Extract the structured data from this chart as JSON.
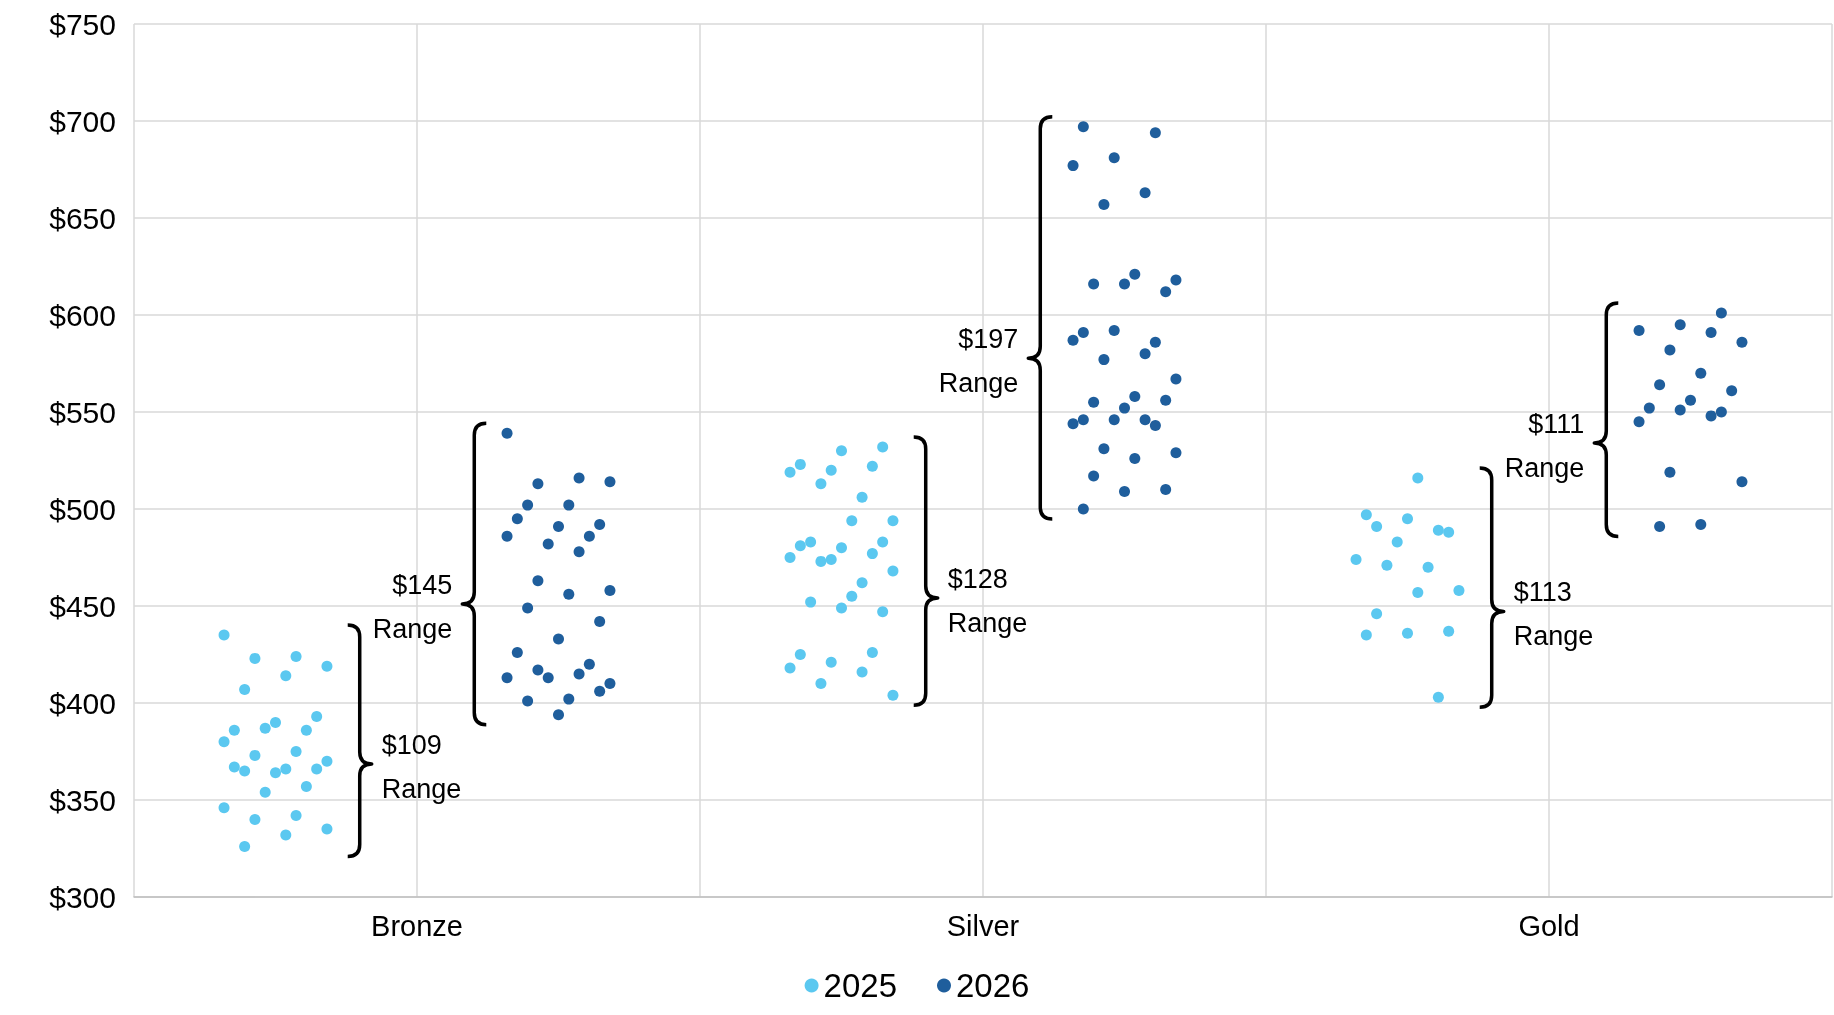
{
  "chart_data": {
    "type": "scatter",
    "categories": [
      "Bronze",
      "Silver",
      "Gold"
    ],
    "ylim": [
      300,
      750
    ],
    "yticks": [
      {
        "value": 300,
        "label": "$300"
      },
      {
        "value": 350,
        "label": "$350"
      },
      {
        "value": 400,
        "label": "$400"
      },
      {
        "value": 450,
        "label": "$450"
      },
      {
        "value": 500,
        "label": "$500"
      },
      {
        "value": 550,
        "label": "$550"
      },
      {
        "value": 600,
        "label": "$600"
      },
      {
        "value": 650,
        "label": "$650"
      },
      {
        "value": 700,
        "label": "$700"
      },
      {
        "value": 750,
        "label": "$750"
      }
    ],
    "grid": true,
    "legend": "bottom",
    "marker": "circle",
    "series": [
      {
        "name": "2025",
        "color": "#5bc8f0",
        "x": [
          "Bronze",
          "Bronze",
          "Bronze",
          "Bronze",
          "Bronze",
          "Bronze",
          "Bronze",
          "Bronze",
          "Bronze",
          "Bronze",
          "Bronze",
          "Bronze",
          "Bronze",
          "Bronze",
          "Bronze",
          "Bronze",
          "Bronze",
          "Bronze",
          "Bronze",
          "Bronze",
          "Bronze",
          "Bronze",
          "Bronze",
          "Bronze",
          "Bronze",
          "Bronze",
          "Bronze",
          "Bronze",
          "Silver",
          "Silver",
          "Silver",
          "Silver",
          "Silver",
          "Silver",
          "Silver",
          "Silver",
          "Silver",
          "Silver",
          "Silver",
          "Silver",
          "Silver",
          "Silver",
          "Silver",
          "Silver",
          "Silver",
          "Silver",
          "Silver",
          "Silver",
          "Silver",
          "Silver",
          "Silver",
          "Silver",
          "Silver",
          "Silver",
          "Silver",
          "Silver",
          "Silver",
          "Silver",
          "Silver",
          "Gold",
          "Gold",
          "Gold",
          "Gold",
          "Gold",
          "Gold",
          "Gold",
          "Gold",
          "Gold",
          "Gold",
          "Gold",
          "Gold",
          "Gold",
          "Gold",
          "Gold",
          "Gold",
          "Gold"
        ],
        "values": [
          435,
          424,
          423,
          419,
          414,
          407,
          393,
          390,
          386,
          386,
          387,
          380,
          375,
          373,
          370,
          366,
          365,
          366,
          364,
          367,
          357,
          354,
          346,
          342,
          340,
          335,
          332,
          326,
          532,
          530,
          523,
          522,
          520,
          519,
          506,
          513,
          494,
          494,
          483,
          483,
          480,
          481,
          477,
          474,
          475,
          462,
          473,
          468,
          455,
          452,
          447,
          449,
          425,
          426,
          421,
          418,
          416,
          410,
          404,
          516,
          491,
          488,
          495,
          497,
          489,
          483,
          474,
          470,
          471,
          458,
          457,
          446,
          437,
          436,
          435,
          403
        ]
      },
      {
        "name": "2026",
        "color": "#1f5e9c",
        "x": [
          "Bronze",
          "Bronze",
          "Bronze",
          "Bronze",
          "Bronze",
          "Bronze",
          "Bronze",
          "Bronze",
          "Bronze",
          "Bronze",
          "Bronze",
          "Bronze",
          "Bronze",
          "Bronze",
          "Bronze",
          "Bronze",
          "Bronze",
          "Bronze",
          "Bronze",
          "Bronze",
          "Bronze",
          "Bronze",
          "Bronze",
          "Bronze",
          "Bronze",
          "Bronze",
          "Bronze",
          "Bronze",
          "Bronze",
          "Bronze",
          "Silver",
          "Silver",
          "Silver",
          "Silver",
          "Silver",
          "Silver",
          "Silver",
          "Silver",
          "Silver",
          "Silver",
          "Silver",
          "Silver",
          "Silver",
          "Silver",
          "Silver",
          "Silver",
          "Silver",
          "Silver",
          "Silver",
          "Silver",
          "Silver",
          "Silver",
          "Silver",
          "Silver",
          "Silver",
          "Silver",
          "Silver",
          "Silver",
          "Silver",
          "Silver",
          "Silver",
          "Silver",
          "Silver",
          "Silver",
          "Gold",
          "Gold",
          "Gold",
          "Gold",
          "Gold",
          "Gold",
          "Gold",
          "Gold",
          "Gold",
          "Gold",
          "Gold",
          "Gold",
          "Gold",
          "Gold",
          "Gold",
          "Gold",
          "Gold",
          "Gold",
          "Gold"
        ],
        "values": [
          539,
          516,
          513,
          514,
          502,
          502,
          492,
          491,
          495,
          486,
          482,
          486,
          478,
          463,
          458,
          456,
          449,
          442,
          433,
          426,
          420,
          413,
          413,
          415,
          417,
          410,
          402,
          401,
          406,
          394,
          697,
          694,
          681,
          677,
          663,
          657,
          618,
          621,
          616,
          612,
          616,
          591,
          586,
          592,
          587,
          580,
          577,
          567,
          558,
          555,
          556,
          552,
          546,
          543,
          546,
          544,
          546,
          531,
          529,
          526,
          517,
          510,
          509,
          500,
          601,
          595,
          592,
          591,
          582,
          586,
          570,
          564,
          561,
          556,
          552,
          550,
          551,
          545,
          548,
          519,
          514,
          492,
          491
        ]
      }
    ],
    "annotations": [
      "$109\nRange",
      "$145\nRange",
      "$128\nRange",
      "$197\nRange",
      "$113\nRange",
      "$111\nRange"
    ]
  }
}
